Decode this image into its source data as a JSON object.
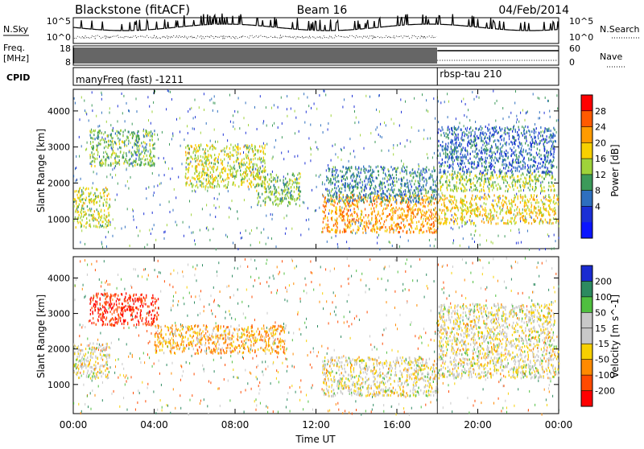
{
  "header": {
    "station": "Blackstone (fitACF)",
    "beam": "Beam 16",
    "date": "04/Feb/2014"
  },
  "strips": {
    "nsky_label": "N.Sky",
    "nsearch_label": "N.Search",
    "nave_label": "Nave",
    "freq_label_1": "Freq.",
    "freq_label_2": "[MHz]",
    "cpid_label": "CPID",
    "nsky_ticks": [
      "10^5",
      "10^0"
    ],
    "freq_ticks": [
      "18",
      "8"
    ],
    "nave_ticks": [
      "60",
      "0"
    ],
    "cpid_segments": [
      {
        "start_hour": 0,
        "end_hour": 18,
        "label": "manyFreq (fast) -1211"
      },
      {
        "start_hour": 18,
        "end_hour": 24,
        "label": "rbsp-tau 210"
      }
    ]
  },
  "colorbars": {
    "power": {
      "label": "Power [dB]",
      "ticks": [
        "28",
        "24",
        "20",
        "16",
        "12",
        "8",
        "4"
      ],
      "colors": [
        "#ff0000",
        "#ff5a00",
        "#ff9b00",
        "#f7d000",
        "#9fd33a",
        "#3c9a5a",
        "#2e6fbf",
        "#1b2fd6",
        "#0b15ff"
      ]
    },
    "velocity": {
      "label": "Velocity [m s^-1]",
      "ticks": [
        "200",
        "100",
        "50",
        "15",
        "-15",
        "-50",
        "-100",
        "-200"
      ],
      "colors": [
        "#1a2bd1",
        "#2d8a60",
        "#4fbf3f",
        "#c8c8c8",
        "#c8c8c8",
        "#f7d000",
        "#ff8a00",
        "#ff4a00",
        "#ff0000"
      ]
    }
  },
  "chart_data": [
    {
      "type": "heatmap",
      "name": "power-panel",
      "xlabel": "Time UT",
      "ylabel": "Slant Range [km]",
      "xticks": [
        "00:00",
        "04:00",
        "08:00",
        "12:00",
        "16:00",
        "20:00",
        "00:00"
      ],
      "yticks": [
        1000,
        2000,
        3000,
        4000
      ],
      "xlim_hours": [
        0,
        24
      ],
      "ylim_km": [
        180,
        4600
      ],
      "regions": [
        {
          "t0": 0.0,
          "t1": 1.8,
          "r0": 800,
          "r1": 1900,
          "value": 16
        },
        {
          "t0": 0.8,
          "t1": 4.0,
          "r0": 2500,
          "r1": 3500,
          "value": 12
        },
        {
          "t0": 5.5,
          "t1": 9.5,
          "r0": 1900,
          "r1": 3100,
          "value": 16
        },
        {
          "t0": 9.0,
          "t1": 11.2,
          "r0": 1400,
          "r1": 2300,
          "value": 12
        },
        {
          "t0": 12.3,
          "t1": 18.0,
          "r0": 650,
          "r1": 1700,
          "value": 22
        },
        {
          "t0": 12.5,
          "t1": 18.0,
          "r0": 1500,
          "r1": 2500,
          "value": 8
        },
        {
          "t0": 18.0,
          "t1": 24.0,
          "r0": 900,
          "r1": 1700,
          "value": 18
        },
        {
          "t0": 18.0,
          "t1": 23.8,
          "r0": 1800,
          "r1": 2300,
          "value": 14
        },
        {
          "t0": 18.0,
          "t1": 23.8,
          "r0": 2300,
          "r1": 3600,
          "value": 6
        }
      ]
    },
    {
      "type": "heatmap",
      "name": "velocity-panel",
      "xlabel": "Time UT",
      "ylabel": "Slant Range [km]",
      "xticks": [
        "00:00",
        "04:00",
        "08:00",
        "12:00",
        "16:00",
        "20:00",
        "00:00"
      ],
      "yticks": [
        1000,
        2000,
        3000,
        4000
      ],
      "xlim_hours": [
        0,
        24
      ],
      "ylim_km": [
        180,
        4600
      ],
      "regions": [
        {
          "t0": 0.0,
          "t1": 1.8,
          "r0": 1200,
          "r1": 2200,
          "value": 0
        },
        {
          "t0": 0.8,
          "t1": 4.2,
          "r0": 2700,
          "r1": 3600,
          "value": -200
        },
        {
          "t0": 4.0,
          "t1": 10.5,
          "r0": 1900,
          "r1": 2700,
          "value": -50
        },
        {
          "t0": 12.3,
          "t1": 18.0,
          "r0": 700,
          "r1": 1800,
          "value": 0
        },
        {
          "t0": 18.0,
          "t1": 24.0,
          "r0": 1200,
          "r1": 2100,
          "value": 0
        },
        {
          "t0": 18.0,
          "t1": 23.8,
          "r0": 2100,
          "r1": 3300,
          "value": 0
        }
      ]
    }
  ]
}
